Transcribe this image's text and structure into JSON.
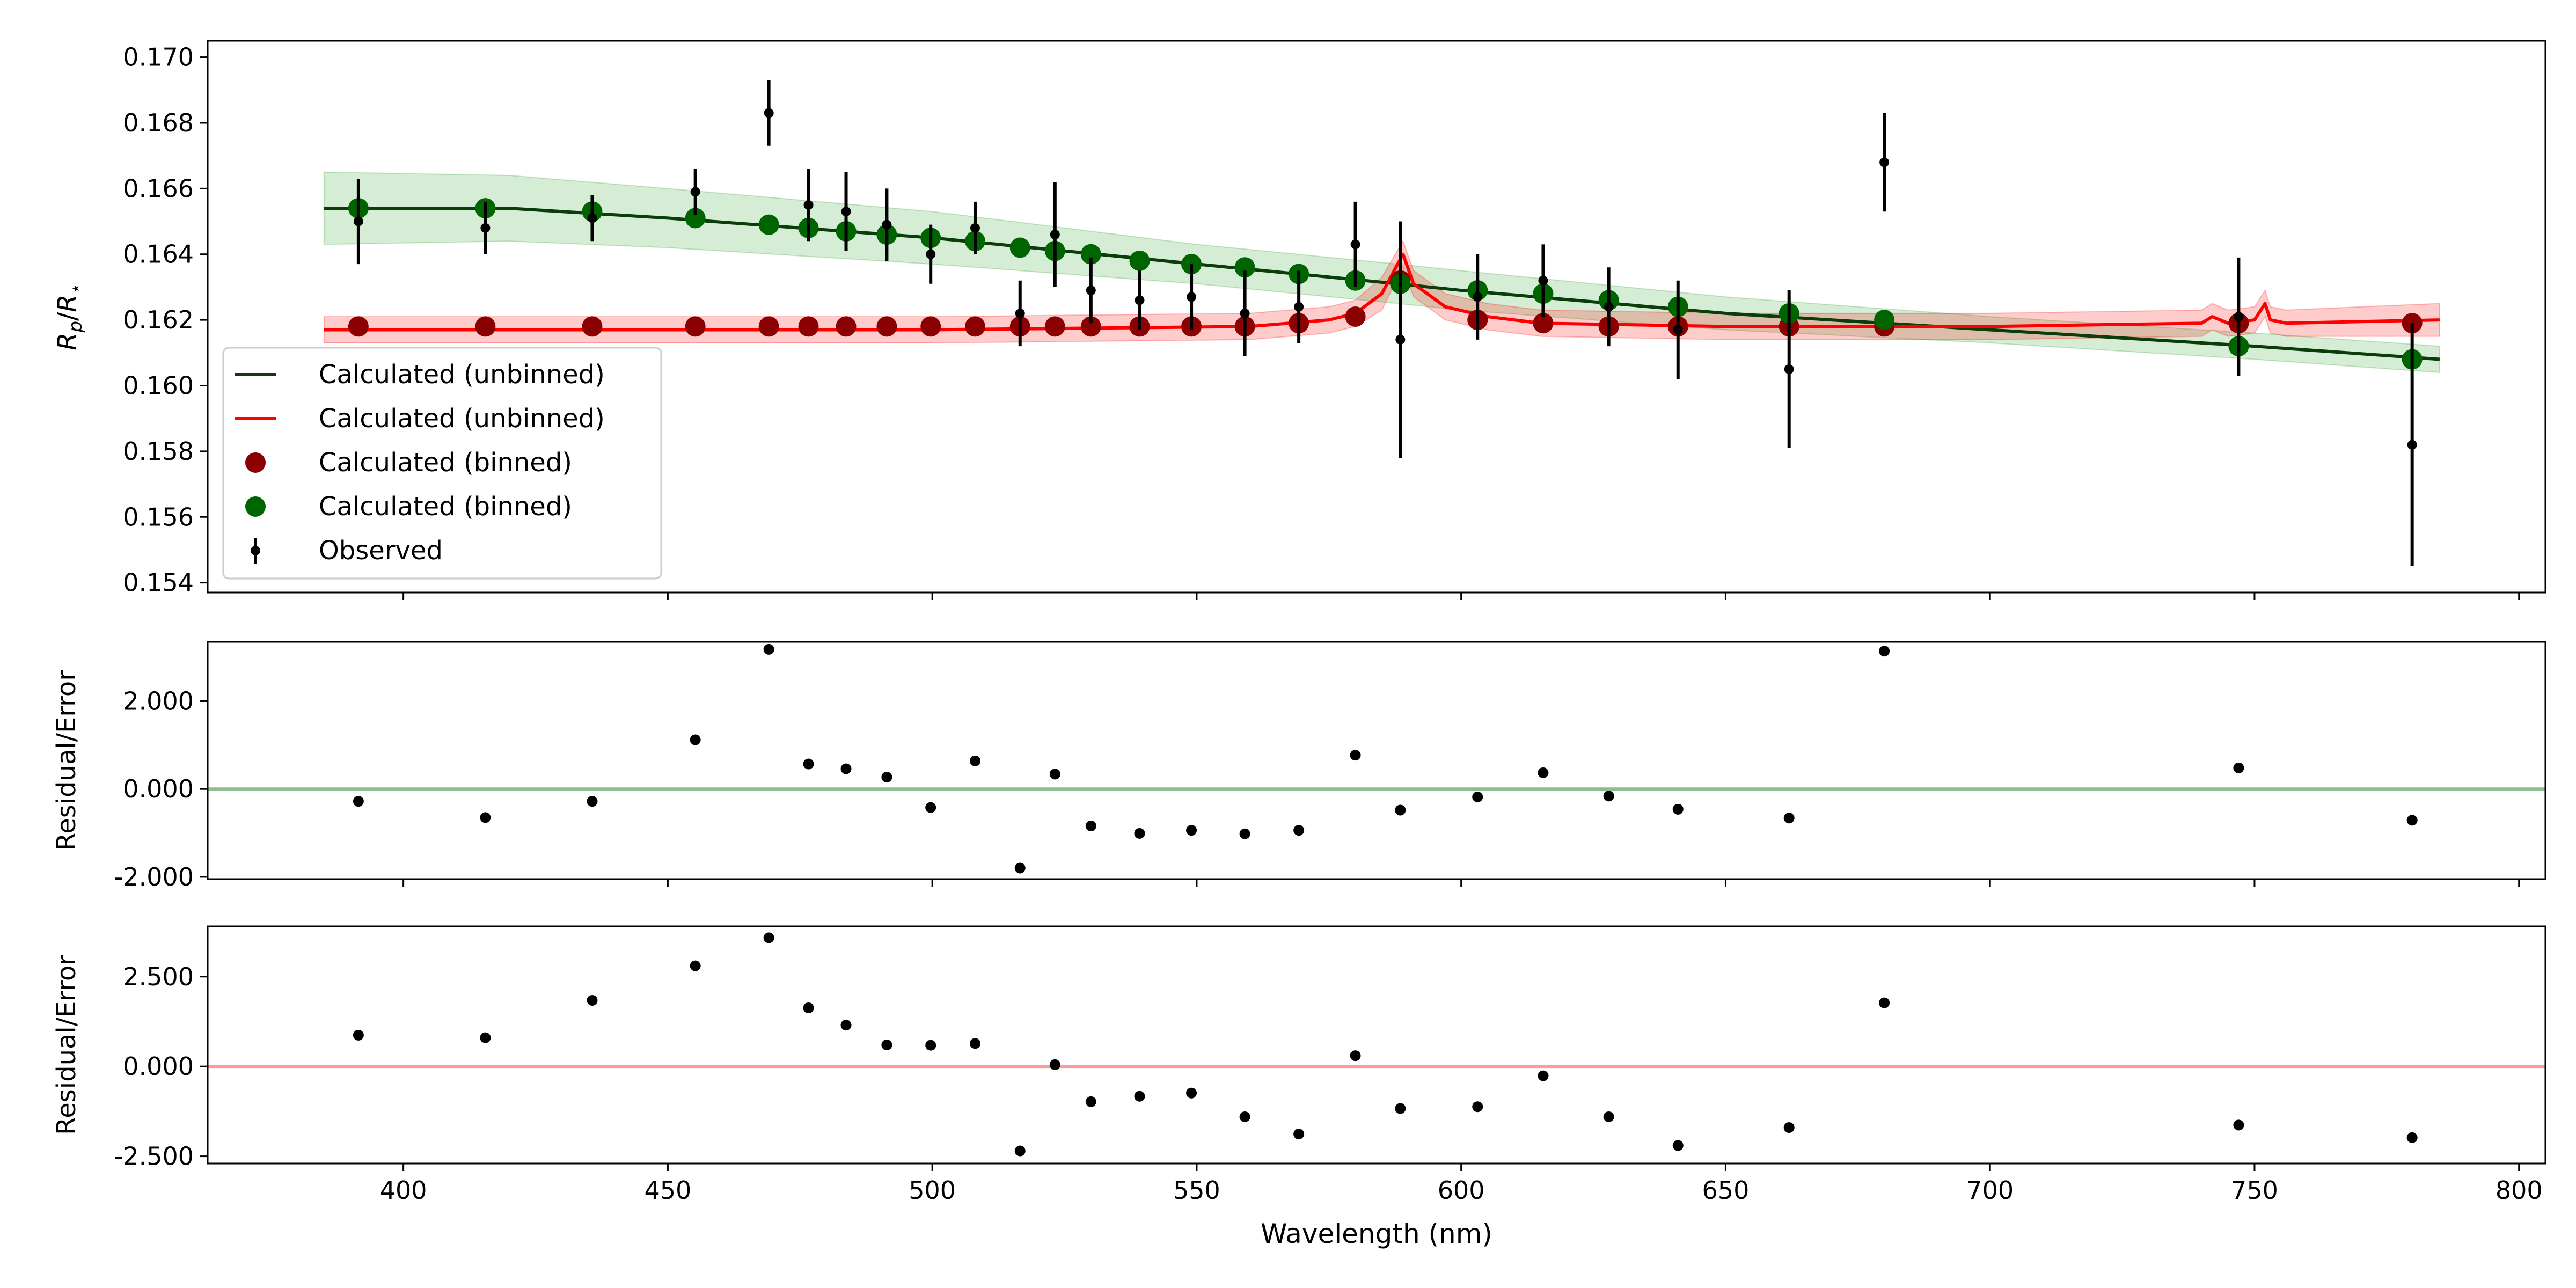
{
  "chart_data": [
    {
      "type": "line",
      "panel": "top",
      "xlim": [
        363,
        805
      ],
      "ylim": [
        0.1537,
        0.1705
      ],
      "ylabel": "R_p/R_⋆",
      "yticks": [
        "0.154",
        "0.156",
        "0.158",
        "0.160",
        "0.162",
        "0.164",
        "0.166",
        "0.168",
        "0.170"
      ],
      "yticks_values": [
        0.154,
        0.156,
        0.158,
        0.16,
        0.162,
        0.164,
        0.166,
        0.168,
        0.17
      ],
      "xticks_values": [
        400,
        450,
        500,
        550,
        600,
        650,
        700,
        750,
        800
      ],
      "legend": {
        "placement": "lower-left",
        "entries": [
          {
            "label": "Calculated (unbinned)",
            "kind": "line",
            "color": "#0a3d0a"
          },
          {
            "label": "Calculated (unbinned)",
            "kind": "line",
            "color": "#ff0000"
          },
          {
            "label": "Calculated (binned)",
            "kind": "dot",
            "color": "#8b0000"
          },
          {
            "label": "Calculated (binned)",
            "kind": "dot",
            "color": "#006400"
          },
          {
            "label": "Observed",
            "kind": "errorbar",
            "color": "#000000"
          }
        ]
      },
      "series": [
        {
          "kind": "model",
          "color": "#0a3d0a",
          "band_color": "#2ca02c",
          "x": [
            385,
            420,
            450,
            500,
            550,
            588,
            600,
            650,
            700,
            750,
            785
          ],
          "y": [
            0.1654,
            0.1654,
            0.1651,
            0.1645,
            0.1637,
            0.1631,
            0.1629,
            0.1622,
            0.1617,
            0.1612,
            0.1608
          ],
          "band_halfwidth": [
            0.0011,
            0.001,
            0.0009,
            0.0008,
            0.0006,
            0.0006,
            0.0006,
            0.0005,
            0.0004,
            0.0004,
            0.0004
          ]
        },
        {
          "kind": "model",
          "color": "#ff0000",
          "band_color": "#ff0000",
          "x": [
            385,
            500,
            560,
            575,
            580,
            585,
            589,
            591,
            597,
            605,
            615,
            650,
            700,
            740,
            742,
            745,
            750,
            752,
            753,
            756,
            785
          ],
          "y": [
            0.1617,
            0.1617,
            0.1618,
            0.162,
            0.1622,
            0.1628,
            0.164,
            0.1631,
            0.1624,
            0.1621,
            0.1619,
            0.1618,
            0.1618,
            0.1619,
            0.1621,
            0.1619,
            0.162,
            0.1625,
            0.162,
            0.1619,
            0.162
          ],
          "band_halfwidth": [
            0.0004,
            0.0004,
            0.0004,
            0.0004,
            0.0004,
            0.0005,
            0.0004,
            0.0004,
            0.0004,
            0.0004,
            0.0004,
            0.0004,
            0.0004,
            0.0004,
            0.0004,
            0.0004,
            0.0004,
            0.0004,
            0.0004,
            0.0004,
            0.0005
          ]
        },
        {
          "kind": "binned",
          "color": "#8b0000",
          "x": [
            391.5,
            415.5,
            435.7,
            455.2,
            469.1,
            476.6,
            483.7,
            491.4,
            499.7,
            508.1,
            516.6,
            523.2,
            530.0,
            539.2,
            549.0,
            559.1,
            569.3,
            580.0,
            588.5,
            603.1,
            615.5,
            627.9,
            641.0,
            662.0,
            680.0,
            747.0,
            779.8
          ],
          "y": [
            0.1618,
            0.1618,
            0.1618,
            0.1618,
            0.1618,
            0.1618,
            0.1618,
            0.1618,
            0.1618,
            0.1618,
            0.1618,
            0.1618,
            0.1618,
            0.1618,
            0.1618,
            0.1618,
            0.1619,
            0.1621,
            0.1632,
            0.162,
            0.1619,
            0.1618,
            0.1618,
            0.1618,
            0.1618,
            0.1619,
            0.1619
          ]
        },
        {
          "kind": "binned",
          "color": "#006400",
          "x": [
            391.5,
            415.5,
            435.7,
            455.2,
            469.1,
            476.6,
            483.7,
            491.4,
            499.7,
            508.1,
            516.6,
            523.2,
            530.0,
            539.2,
            549.0,
            559.1,
            569.3,
            580.0,
            588.5,
            603.1,
            615.5,
            627.9,
            641.0,
            662.0,
            680.0,
            747.0,
            779.8
          ],
          "y": [
            0.1654,
            0.1654,
            0.1653,
            0.1651,
            0.1649,
            0.1648,
            0.1647,
            0.1646,
            0.1645,
            0.1644,
            0.1642,
            0.1641,
            0.164,
            0.1638,
            0.1637,
            0.1636,
            0.1634,
            0.1632,
            0.1631,
            0.1629,
            0.1628,
            0.1626,
            0.1624,
            0.1622,
            0.162,
            0.1612,
            0.1608
          ]
        },
        {
          "kind": "observed",
          "color": "#000000",
          "x": [
            391.5,
            415.5,
            435.7,
            455.2,
            469.1,
            476.6,
            483.7,
            491.4,
            499.7,
            508.1,
            516.6,
            523.2,
            530.0,
            539.2,
            549.0,
            559.1,
            569.3,
            580.0,
            588.5,
            603.1,
            615.5,
            627.9,
            641.0,
            662.0,
            680.0,
            747.0,
            779.8
          ],
          "y": [
            0.165,
            0.1648,
            0.1651,
            0.1659,
            0.1683,
            0.1655,
            0.1653,
            0.1649,
            0.164,
            0.1648,
            0.1622,
            0.1646,
            0.1629,
            0.1626,
            0.1627,
            0.1622,
            0.1624,
            0.1643,
            0.1614,
            0.1627,
            0.1632,
            0.1624,
            0.1617,
            0.1605,
            0.1668,
            0.1621,
            0.1582
          ],
          "yerr": [
            0.0013,
            0.0008,
            0.0007,
            0.0007,
            0.001,
            0.0011,
            0.0012,
            0.0011,
            0.0009,
            0.0008,
            0.001,
            0.0016,
            0.001,
            0.0009,
            0.001,
            0.0013,
            0.0011,
            0.0013,
            0.0036,
            0.0013,
            0.0011,
            0.0012,
            0.0015,
            0.0024,
            0.0015,
            0.0018,
            0.0037
          ]
        }
      ]
    },
    {
      "type": "scatter",
      "panel": "middle",
      "xlim": [
        363,
        805
      ],
      "ylim": [
        -2.05,
        3.35
      ],
      "ylabel": "Residual/Error",
      "yticks": [
        "-2.000",
        "0.000",
        "2.000"
      ],
      "yticks_values": [
        -2,
        0,
        2
      ],
      "xticks_values": [
        400,
        450,
        500,
        550,
        600,
        650,
        700,
        750,
        800
      ],
      "zero_line_color": "#8fbc8f",
      "x": [
        391.5,
        415.5,
        435.7,
        455.2,
        469.1,
        476.6,
        483.7,
        491.4,
        499.7,
        508.1,
        516.6,
        523.2,
        530.0,
        539.2,
        549.0,
        559.1,
        569.3,
        580.0,
        588.5,
        603.1,
        615.5,
        627.9,
        641.0,
        662.0,
        680.0,
        747.0,
        779.8
      ],
      "y": [
        -0.28,
        -0.65,
        -0.28,
        1.12,
        3.18,
        0.57,
        0.46,
        0.27,
        -0.42,
        0.64,
        -1.8,
        0.34,
        -0.84,
        -1.01,
        -0.94,
        -1.02,
        -0.94,
        0.77,
        -0.48,
        -0.18,
        0.37,
        -0.16,
        -0.46,
        -0.66,
        3.14,
        0.48,
        -0.71
      ]
    },
    {
      "type": "scatter",
      "panel": "bottom",
      "xlim": [
        363,
        805
      ],
      "ylim": [
        -2.7,
        3.9
      ],
      "ylabel": "Residual/Error",
      "xlabel": "Wavelength (nm)",
      "yticks": [
        "-2.500",
        "0.000",
        "2.500"
      ],
      "yticks_values": [
        -2.5,
        0,
        2.5
      ],
      "xticks": [
        "400",
        "450",
        "500",
        "550",
        "600",
        "650",
        "700",
        "750",
        "800"
      ],
      "xticks_values": [
        400,
        450,
        500,
        550,
        600,
        650,
        700,
        750,
        800
      ],
      "zero_line_color": "#ff9a9a",
      "x": [
        391.5,
        415.5,
        435.7,
        455.2,
        469.1,
        476.6,
        483.7,
        491.4,
        499.7,
        508.1,
        516.6,
        523.2,
        530.0,
        539.2,
        549.0,
        559.1,
        569.3,
        580.0,
        588.5,
        603.1,
        615.5,
        627.9,
        641.0,
        662.0,
        680.0,
        747.0,
        779.8
      ],
      "y": [
        0.87,
        0.8,
        1.84,
        2.8,
        3.58,
        1.63,
        1.15,
        0.6,
        0.59,
        0.64,
        -2.35,
        0.05,
        -0.98,
        -0.83,
        -0.74,
        -1.4,
        -1.88,
        0.3,
        -1.17,
        -1.12,
        -0.26,
        -1.4,
        -2.2,
        -1.7,
        1.77,
        -1.63,
        -1.98
      ]
    }
  ]
}
